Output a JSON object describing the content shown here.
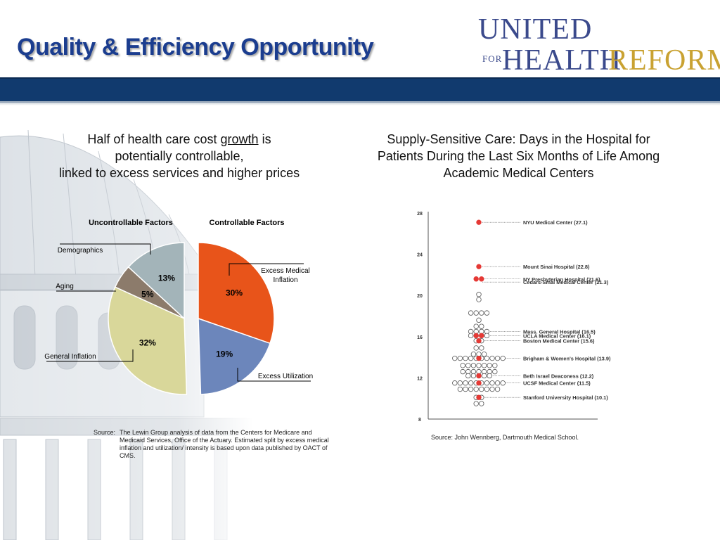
{
  "header": {
    "title": "Quality & Efficiency Opportunity",
    "logo": {
      "united": "UNITED",
      "for": "FOR",
      "health": "HEALTH",
      "reform": "REFORM"
    }
  },
  "colors": {
    "band": "#113a6e",
    "title": "#1b3d8f",
    "logo_blue": "#3b4a8c",
    "logo_gold": "#c9a232",
    "red": "#e53935"
  },
  "left_panel": {
    "title_pre": "Half of health care cost ",
    "title_underlined": "growth",
    "title_post": " is",
    "title_line2": "potentially controllable,",
    "title_line3": "linked to excess services and higher prices",
    "source_label": "Source:",
    "source_text": "The Lewin Group analysis of data from the Centers for Medicare and Medicaid Services, Office of the Actuary. Estimated split by excess medical inflation and utilization/ intensity is based upon data published by OACT of CMS."
  },
  "right_panel": {
    "title_line1": "Supply-Sensitive Care: Days in the Hospital for",
    "title_line2": "Patients During the Last Six Months of Life Among",
    "title_line3": "Academic Medical Centers",
    "source": "Source: John Wennberg, Dartmouth Medical School."
  },
  "chart_data": [
    {
      "type": "pie",
      "group_labels": {
        "uncontrollable": "Uncontrollable Factors",
        "controllable": "Controllable Factors"
      },
      "slices": [
        {
          "label": "Excess Medical Inflation",
          "value": 30,
          "value_label": "30%",
          "color": "#e8541a",
          "group": "controllable"
        },
        {
          "label": "Excess Utilization",
          "value": 19,
          "value_label": "19%",
          "color": "#6c86bb",
          "group": "controllable"
        },
        {
          "label": "General Inflation",
          "value": 32,
          "value_label": "32%",
          "color": "#d9d79a",
          "group": "uncontrollable"
        },
        {
          "label": "Aging",
          "value": 5,
          "value_label": "5%",
          "color": "#8c7b6b",
          "group": "uncontrollable"
        },
        {
          "label": "Demographics",
          "value": 13,
          "value_label": "13%",
          "color": "#a3b4b9",
          "group": "uncontrollable"
        }
      ]
    },
    {
      "type": "scatter",
      "ylim": [
        8,
        28
      ],
      "y_ticks": [
        "8",
        "12",
        "16",
        "20",
        "24",
        "28"
      ],
      "labeled": [
        {
          "name": "NYU Medical Center (27.1)",
          "y": 27.1,
          "dots": 1
        },
        {
          "name": "Mount Sinai Hospital (22.8)",
          "y": 22.8,
          "dots": 1
        },
        {
          "name": "NY Presbyterian Hospital (21.6)",
          "y": 21.6,
          "dots": 2
        },
        {
          "name": "Cedars-Sinai Medical Center (21.3)",
          "y": 21.3,
          "dots": 0
        },
        {
          "name": "Mass. General Hospital (16.5)",
          "y": 16.5,
          "dots": 0
        },
        {
          "name": "UCLA Medical Center (16.1)",
          "y": 16.1,
          "dots": 2
        },
        {
          "name": "Boston Medical Center (15.6)",
          "y": 15.6,
          "dots": 1
        },
        {
          "name": "Brigham & Women's Hospital (13.9)",
          "y": 13.9,
          "dots": 1
        },
        {
          "name": "Beth Israel Deaconess (12.2)",
          "y": 12.2,
          "dots": 1
        },
        {
          "name": "UCSF Medical Center (11.5)",
          "y": 11.5,
          "dots": 1
        },
        {
          "name": "Stanford University Hospital (10.1)",
          "y": 10.1,
          "dots": 1
        }
      ],
      "other_row_counts": [
        {
          "y": 20.1,
          "count": 1
        },
        {
          "y": 19.6,
          "count": 1
        },
        {
          "y": 18.3,
          "count": 4
        },
        {
          "y": 17.6,
          "count": 1
        },
        {
          "y": 17.0,
          "count": 2
        },
        {
          "y": 16.5,
          "count": 4
        },
        {
          "y": 16.1,
          "count": 4
        },
        {
          "y": 15.6,
          "count": 2
        },
        {
          "y": 14.9,
          "count": 2
        },
        {
          "y": 14.3,
          "count": 3
        },
        {
          "y": 13.9,
          "count": 10
        },
        {
          "y": 13.2,
          "count": 7
        },
        {
          "y": 12.6,
          "count": 7
        },
        {
          "y": 12.2,
          "count": 5
        },
        {
          "y": 11.5,
          "count": 10
        },
        {
          "y": 10.9,
          "count": 8
        },
        {
          "y": 10.1,
          "count": 2
        },
        {
          "y": 9.5,
          "count": 2
        }
      ]
    }
  ]
}
